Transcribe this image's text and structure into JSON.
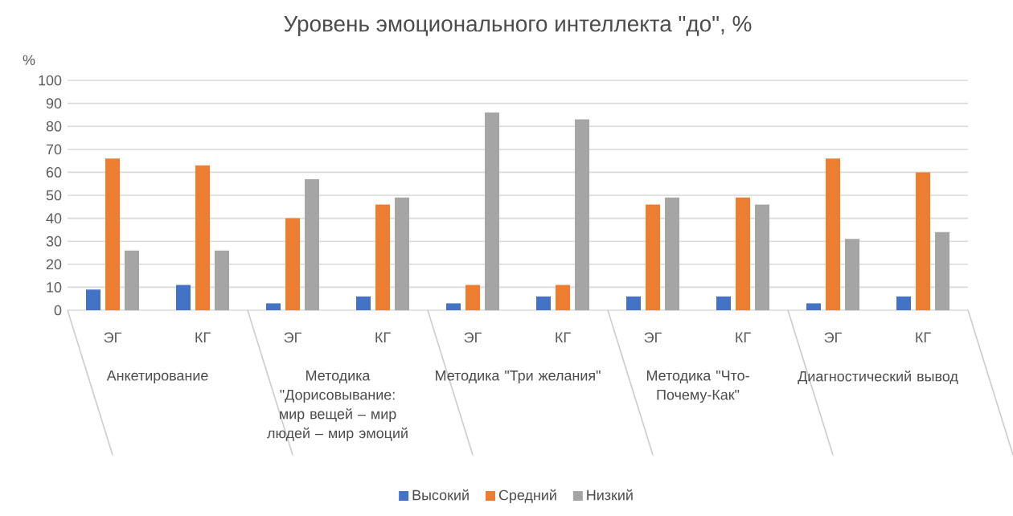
{
  "chart_data": {
    "type": "bar",
    "title": "Уровень эмоционального интеллекта \"до\", %",
    "ylabel": "%",
    "categories": [
      "ЭГ",
      "КГ",
      "ЭГ",
      "КГ",
      "ЭГ",
      "КГ",
      "ЭГ",
      "КГ",
      "ЭГ",
      "КГ"
    ],
    "annotations": [
      "Анкетирование",
      "Методика \"Дорисовывание: мир вещей – мир людей – мир эмоций",
      "Методика \"Три желания\"",
      "Методика \"Что-Почему-Как\"",
      "Диагностический вывод"
    ],
    "series": [
      {
        "name": "Высокий",
        "color": "#4472c4",
        "values": [
          9,
          11,
          3,
          6,
          3,
          6,
          6,
          6,
          3,
          6
        ]
      },
      {
        "name": "Средний",
        "color": "#ed7d31",
        "values": [
          66,
          63,
          40,
          46,
          11,
          11,
          46,
          49,
          66,
          60
        ]
      },
      {
        "name": "Низкий",
        "color": "#a5a5a5",
        "values": [
          26,
          26,
          57,
          49,
          86,
          83,
          49,
          46,
          31,
          34
        ]
      }
    ],
    "ylim": [
      0,
      100
    ],
    "yticks": [
      0,
      10,
      20,
      30,
      40,
      50,
      60,
      70,
      80,
      90,
      100
    ],
    "grid": "y",
    "legend": "bottom"
  }
}
